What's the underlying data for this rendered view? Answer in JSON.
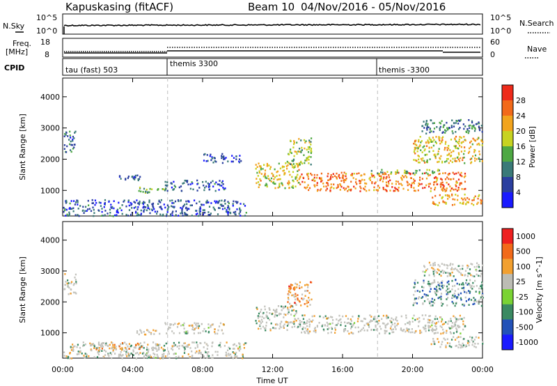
{
  "header": {
    "radar": "Kapuskasing (fitACF)",
    "beam": "Beam 10",
    "date_range": "04/Nov/2016 - 05/Nov/2016"
  },
  "top_panels": {
    "nsky_label": "N.Sky",
    "nsky_ticks": [
      "10^5",
      "10^0"
    ],
    "nsearch_label": "N.Search",
    "freq_label_1": "Freq.",
    "freq_label_2": "[MHz]",
    "freq_ticks": [
      "18",
      "8"
    ],
    "nave_label": "Nave",
    "nave_ticks": [
      "60",
      "0"
    ],
    "cpid_label": "CPID",
    "cpid_segments": [
      "tau (fast) 503",
      "themis 3300",
      "themis -3300"
    ]
  },
  "colors": {
    "power": [
      "#1a1aff",
      "#2b3f9f",
      "#3a7a78",
      "#4ea843",
      "#c7d321",
      "#f2a41d",
      "#f26a1a",
      "#ee2a1a"
    ],
    "velocity": [
      "#1a1aff",
      "#2352b8",
      "#3b8a62",
      "#7ad334",
      "#bcbcb4",
      "#f2a030",
      "#f26a1a",
      "#ee2020"
    ],
    "gray": "#c3c3bd"
  },
  "chart_data": [
    {
      "type": "heatmap",
      "title": "",
      "xlabel": "Time UT",
      "ylabel": "Slant Range [km]",
      "x_ticks": [
        "00:00",
        "04:00",
        "08:00",
        "12:00",
        "16:00",
        "20:00",
        "00:00"
      ],
      "xlim_hours": [
        0,
        24
      ],
      "y_ticks": [
        "1000",
        "2000",
        "3000",
        "4000"
      ],
      "ylim_km": [
        180,
        4600
      ],
      "colorbar_label": "Power [dB]",
      "colorbar_ticks": [
        "4",
        "8",
        "12",
        "16",
        "20",
        "24",
        "28"
      ],
      "colorbar_range": [
        0,
        32
      ],
      "mode_change_hours": [
        6,
        18
      ],
      "regions": [
        {
          "hours": [
            0.05,
            0.75
          ],
          "km": [
            2250,
            2950
          ],
          "level": 0.28
        },
        {
          "hours": [
            0.0,
            10.5
          ],
          "km": [
            200,
            720
          ],
          "level": 0.22
        },
        {
          "hours": [
            3.2,
            4.4
          ],
          "km": [
            1350,
            1520
          ],
          "level": 0.25
        },
        {
          "hours": [
            4.2,
            5.8
          ],
          "km": [
            950,
            1120
          ],
          "level": 0.45
        },
        {
          "hours": [
            5.8,
            9.3
          ],
          "km": [
            1000,
            1350
          ],
          "level": 0.22
        },
        {
          "hours": [
            8.0,
            10.2
          ],
          "km": [
            1900,
            2200
          ],
          "level": 0.15
        },
        {
          "hours": [
            11.0,
            13.5
          ],
          "km": [
            1100,
            1900
          ],
          "level": 0.6
        },
        {
          "hours": [
            12.8,
            14.2
          ],
          "km": [
            1850,
            2700
          ],
          "level": 0.5
        },
        {
          "hours": [
            13.5,
            23.0
          ],
          "km": [
            1000,
            1600
          ],
          "level": 0.78
        },
        {
          "hours": [
            17.5,
            21.5
          ],
          "km": [
            1550,
            1700
          ],
          "level": 0.45
        },
        {
          "hours": [
            20.0,
            24.0
          ],
          "km": [
            1900,
            2750
          ],
          "level": 0.62
        },
        {
          "hours": [
            20.5,
            24.0
          ],
          "km": [
            2850,
            3300
          ],
          "level": 0.3
        },
        {
          "hours": [
            21.0,
            24.0
          ],
          "km": [
            550,
            900
          ],
          "level": 0.7
        }
      ]
    },
    {
      "type": "heatmap",
      "title": "",
      "xlabel": "Time UT",
      "ylabel": "Slant Range [km]",
      "x_ticks": [
        "00:00",
        "04:00",
        "08:00",
        "12:00",
        "16:00",
        "20:00",
        "00:00"
      ],
      "xlim_hours": [
        0,
        24
      ],
      "y_ticks": [
        "1000",
        "2000",
        "3000",
        "4000"
      ],
      "ylim_km": [
        180,
        4600
      ],
      "colorbar_label": "Velocity [m s^-1]",
      "colorbar_ticks": [
        "1000",
        "500",
        "100",
        "25",
        "-25",
        "-100",
        "-500",
        "-1000"
      ],
      "mode_change_hours": [
        6,
        18
      ],
      "regions": [
        {
          "hours": [
            0.05,
            0.75
          ],
          "km": [
            2250,
            2950
          ],
          "level": 0.5
        },
        {
          "hours": [
            0.0,
            10.5
          ],
          "km": [
            200,
            720
          ],
          "level": 0.5
        },
        {
          "hours": [
            1.5,
            4.5
          ],
          "km": [
            450,
            700
          ],
          "level": 0.65
        },
        {
          "hours": [
            4.2,
            5.8
          ],
          "km": [
            950,
            1120
          ],
          "level": 0.5
        },
        {
          "hours": [
            5.8,
            9.3
          ],
          "km": [
            1000,
            1350
          ],
          "level": 0.5
        },
        {
          "hours": [
            11.0,
            13.5
          ],
          "km": [
            1100,
            1900
          ],
          "level": 0.5
        },
        {
          "hours": [
            12.8,
            14.2
          ],
          "km": [
            1850,
            2700
          ],
          "level": 0.72
        },
        {
          "hours": [
            13.5,
            23.0
          ],
          "km": [
            1000,
            1600
          ],
          "level": 0.5
        },
        {
          "hours": [
            20.0,
            24.0
          ],
          "km": [
            1900,
            2750
          ],
          "level": 0.35
        },
        {
          "hours": [
            20.5,
            24.0
          ],
          "km": [
            2850,
            3300
          ],
          "level": 0.5
        },
        {
          "hours": [
            21.0,
            24.0
          ],
          "km": [
            550,
            900
          ],
          "level": 0.5
        }
      ]
    }
  ]
}
